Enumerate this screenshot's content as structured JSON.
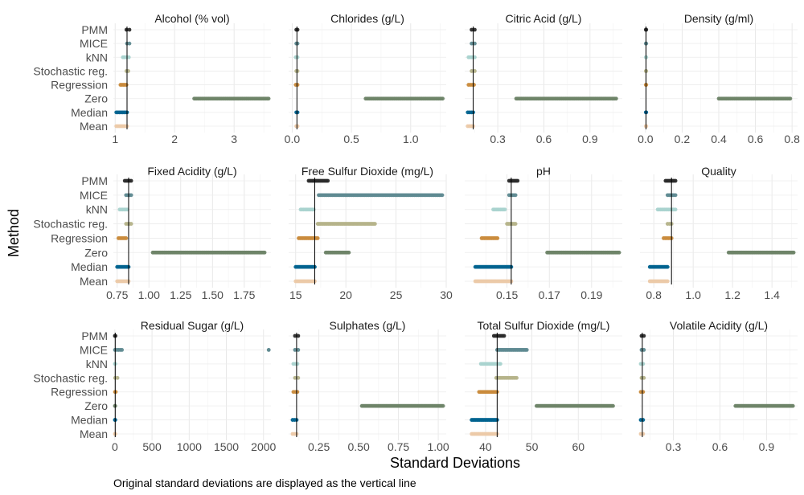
{
  "figure": {
    "y_axis_title": "Method",
    "x_axis_title": "Standard Deviations",
    "caption": "Original standard deviations are displayed as the vertical line"
  },
  "chart_data": {
    "type": "scatter",
    "methods": [
      "PMM",
      "MICE",
      "kNN",
      "Stochastic reg.",
      "Regression",
      "Zero",
      "Median",
      "Mean"
    ],
    "method_colors": {
      "PMM": "#2b2b2b",
      "MICE": "#5f8a91",
      "kNN": "#a9d3cf",
      "Stochastic reg.": "#b5b38a",
      "Regression": "#c98b3c",
      "Zero": "#6e8468",
      "Median": "#00638f",
      "Mean": "#ecc9a8"
    },
    "panels": [
      {
        "title": "Alcohol (% vol)",
        "xlim": [
          0.97,
          3.62
        ],
        "ticks": [
          1,
          2,
          3
        ],
        "tick_labels": [
          "1",
          "2",
          "3"
        ],
        "original_sd": 1.2,
        "ranges": {
          "PMM": [
            1.19,
            1.24
          ],
          "MICE": [
            1.2,
            1.24
          ],
          "kNN": [
            1.13,
            1.23
          ],
          "Stochastic reg.": [
            1.19,
            1.22
          ],
          "Regression": [
            1.09,
            1.19
          ],
          "Zero": [
            2.33,
            3.58
          ],
          "Median": [
            1.02,
            1.2
          ],
          "Mean": [
            1.02,
            1.2
          ]
        }
      },
      {
        "title": "Chlorides (g/L)",
        "xlim": [
          -0.03,
          1.3
        ],
        "ticks": [
          0,
          0.5,
          1.0
        ],
        "tick_labels": [
          "0.0",
          "0.5",
          "1.0"
        ],
        "original_sd": 0.04,
        "ranges": {
          "PMM": [
            0.035,
            0.045
          ],
          "MICE": [
            0.035,
            0.045
          ],
          "kNN": [
            0.03,
            0.045
          ],
          "Stochastic reg.": [
            0.035,
            0.045
          ],
          "Regression": [
            0.03,
            0.045
          ],
          "Zero": [
            0.62,
            1.27
          ],
          "Median": [
            0.035,
            0.045
          ],
          "Mean": [
            0.035,
            0.045
          ]
        }
      },
      {
        "title": "Citric Acid (g/L)",
        "xlim": [
          0.085,
          1.11
        ],
        "ticks": [
          0.3,
          0.6,
          0.9
        ],
        "tick_labels": [
          "0.3",
          "0.6",
          "0.9"
        ],
        "original_sd": 0.14,
        "ranges": {
          "PMM": [
            0.13,
            0.15
          ],
          "MICE": [
            0.13,
            0.15
          ],
          "kNN": [
            0.11,
            0.15
          ],
          "Stochastic reg.": [
            0.13,
            0.15
          ],
          "Regression": [
            0.11,
            0.145
          ],
          "Zero": [
            0.42,
            1.07
          ],
          "Median": [
            0.105,
            0.14
          ],
          "Mean": [
            0.105,
            0.14
          ]
        }
      },
      {
        "title": "Density (g/ml)",
        "xlim": [
          -0.03,
          0.83
        ],
        "ticks": [
          0,
          0.2,
          0.4,
          0.6,
          0.8
        ],
        "tick_labels": [
          "0.0",
          "0.2",
          "0.4",
          "0.6",
          "0.8"
        ],
        "original_sd": 0.003,
        "ranges": {
          "PMM": [
            0.002,
            0.004
          ],
          "MICE": [
            0.002,
            0.004
          ],
          "kNN": [
            0.002,
            0.004
          ],
          "Stochastic reg.": [
            0.002,
            0.004
          ],
          "Regression": [
            0.002,
            0.004
          ],
          "Zero": [
            0.4,
            0.79
          ],
          "Median": [
            0.002,
            0.004
          ],
          "Mean": [
            0.002,
            0.004
          ]
        }
      },
      {
        "title": "Fixed Acidity (g/L)",
        "xlim": [
          0.72,
          1.96
        ],
        "ticks": [
          0.75,
          1.0,
          1.25,
          1.5,
          1.75
        ],
        "tick_labels": [
          "0.75",
          "1.00",
          "1.25",
          "1.50",
          "1.75"
        ],
        "original_sd": 0.84,
        "ranges": {
          "PMM": [
            0.81,
            0.86
          ],
          "MICE": [
            0.82,
            0.86
          ],
          "kNN": [
            0.77,
            0.83
          ],
          "Stochastic reg.": [
            0.82,
            0.86
          ],
          "Regression": [
            0.76,
            0.82
          ],
          "Zero": [
            1.03,
            1.91
          ],
          "Median": [
            0.75,
            0.84
          ],
          "Mean": [
            0.75,
            0.84
          ]
        }
      },
      {
        "title": "Free Sulfur Dioxide (mg/L)",
        "xlim": [
          14.3,
          30.0
        ],
        "ticks": [
          15,
          20,
          25,
          30
        ],
        "tick_labels": [
          "15",
          "20",
          "25",
          "30"
        ],
        "original_sd": 16.9,
        "ranges": {
          "PMM": [
            16.3,
            18.2
          ],
          "MICE": [
            17.3,
            29.6
          ],
          "kNN": [
            15.5,
            16.8
          ],
          "Stochastic reg.": [
            17.2,
            22.9
          ],
          "Regression": [
            15.3,
            17.2
          ],
          "Zero": [
            18.0,
            20.3
          ],
          "Median": [
            15.0,
            16.9
          ],
          "Mean": [
            15.0,
            16.9
          ]
        }
      },
      {
        "title": "pH",
        "xlim": [
          0.13,
          0.2045
        ],
        "ticks": [
          0.15,
          0.17,
          0.19
        ],
        "tick_labels": [
          "0.15",
          "0.17",
          "0.19"
        ],
        "original_sd": 0.152,
        "ranges": {
          "PMM": [
            0.151,
            0.155
          ],
          "MICE": [
            0.151,
            0.154
          ],
          "kNN": [
            0.1435,
            0.149
          ],
          "Stochastic reg.": [
            0.15,
            0.154
          ],
          "Regression": [
            0.138,
            0.1455
          ],
          "Zero": [
            0.169,
            0.203
          ],
          "Median": [
            0.135,
            0.152
          ],
          "Mean": [
            0.135,
            0.152
          ]
        }
      },
      {
        "title": "Quality",
        "xlim": [
          0.73,
          1.53
        ],
        "ticks": [
          0.8,
          1.0,
          1.2,
          1.4
        ],
        "tick_labels": [
          "0.8",
          "1.0",
          "1.2",
          "1.4"
        ],
        "original_sd": 0.89,
        "ranges": {
          "PMM": [
            0.86,
            0.91
          ],
          "MICE": [
            0.87,
            0.91
          ],
          "kNN": [
            0.82,
            0.91
          ],
          "Stochastic reg.": [
            0.87,
            0.89
          ],
          "Regression": [
            0.85,
            0.89
          ],
          "Zero": [
            1.18,
            1.51
          ],
          "Median": [
            0.78,
            0.87
          ],
          "Mean": [
            0.78,
            0.87
          ]
        }
      },
      {
        "title": "Residual Sugar (g/L)",
        "xlim": [
          -20,
          2100
        ],
        "ticks": [
          0,
          500,
          1000,
          1500,
          2000
        ],
        "tick_labels": [
          "0",
          "500",
          "1000",
          "1500",
          "2000"
        ],
        "original_sd": 5.0,
        "ranges": {
          "PMM": [
            1,
            8
          ],
          "MICE": [
            2,
            95
          ],
          "kNN": [
            1,
            6
          ],
          "Stochastic reg.": [
            4,
            35
          ],
          "Regression": [
            2,
            12
          ],
          "Zero": [
            1,
            5
          ],
          "Median": [
            1,
            6
          ],
          "Mean": [
            1,
            6
          ]
        },
        "extra_points": {
          "MICE": [
            2070
          ]
        }
      },
      {
        "title": "Sulphates (g/L)",
        "xlim": [
          0.06,
          1.05
        ],
        "ticks": [
          0.25,
          0.5,
          0.75,
          1.0
        ],
        "tick_labels": [
          "0.25",
          "0.50",
          "0.75",
          "1.00"
        ],
        "original_sd": 0.11,
        "ranges": {
          "PMM": [
            0.1,
            0.12
          ],
          "MICE": [
            0.1,
            0.12
          ],
          "kNN": [
            0.09,
            0.115
          ],
          "Stochastic reg.": [
            0.1,
            0.12
          ],
          "Regression": [
            0.09,
            0.115
          ],
          "Zero": [
            0.52,
            1.03
          ],
          "Median": [
            0.085,
            0.11
          ],
          "Mean": [
            0.085,
            0.11
          ]
        }
      },
      {
        "title": "Total Sulfur Dioxide (mg/L)",
        "xlim": [
          35.5,
          69.5
        ],
        "ticks": [
          40,
          50,
          60
        ],
        "tick_labels": [
          "40",
          "50",
          "60"
        ],
        "original_sd": 42.5,
        "ranges": {
          "PMM": [
            41.8,
            44.0
          ],
          "MICE": [
            42.5,
            48.9
          ],
          "kNN": [
            39.0,
            43.2
          ],
          "Stochastic reg.": [
            42.3,
            46.7
          ],
          "Regression": [
            38.6,
            42.5
          ],
          "Zero": [
            51.0,
            67.5
          ],
          "Median": [
            37.0,
            42.5
          ],
          "Mean": [
            37.0,
            42.5
          ]
        }
      },
      {
        "title": "Volatile Acidity (g/L)",
        "xlim": [
          0.085,
          1.1
        ],
        "ticks": [
          0.3,
          0.6,
          0.9
        ],
        "tick_labels": [
          "0.3",
          "0.6",
          "0.9"
        ],
        "original_sd": 0.1,
        "ranges": {
          "PMM": [
            0.095,
            0.11
          ],
          "MICE": [
            0.095,
            0.11
          ],
          "kNN": [
            0.09,
            0.105
          ],
          "Stochastic reg.": [
            0.095,
            0.11
          ],
          "Regression": [
            0.09,
            0.105
          ],
          "Zero": [
            0.7,
            1.07
          ],
          "Median": [
            0.09,
            0.105
          ],
          "Mean": [
            0.09,
            0.105
          ]
        }
      }
    ]
  }
}
